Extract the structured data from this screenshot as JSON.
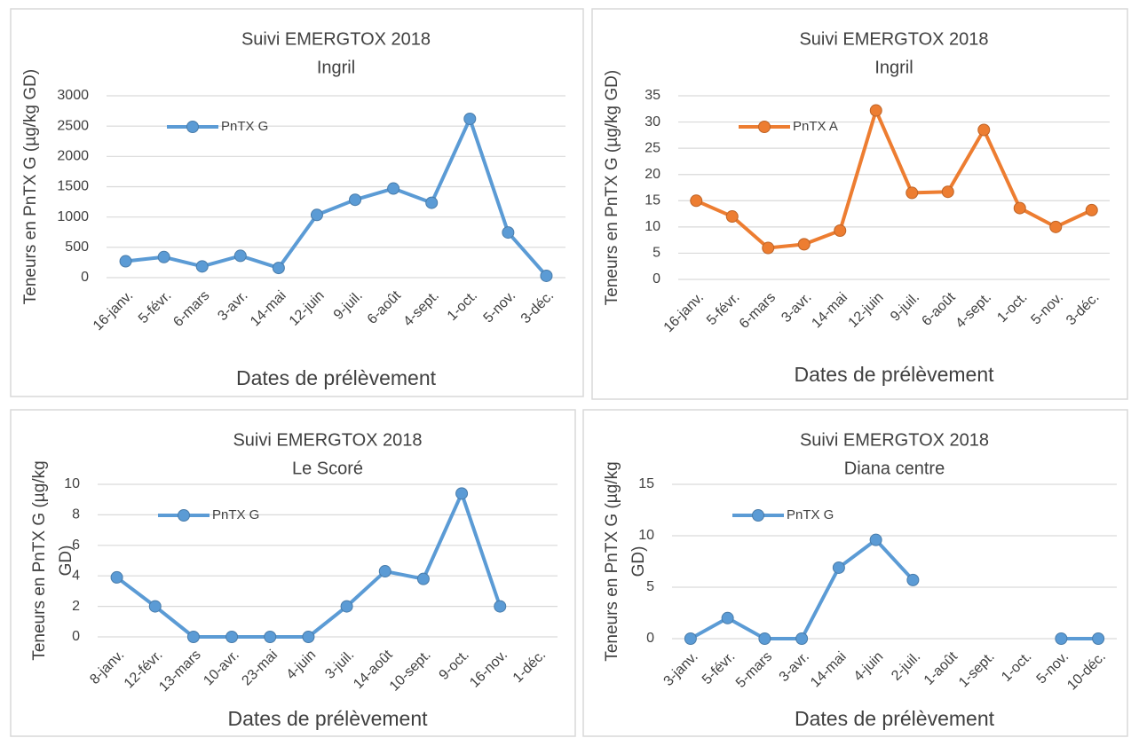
{
  "chart_data": [
    {
      "type": "line",
      "title": "Suivi EMERGTOX 2018",
      "subtitle": "Ingril",
      "x_label": "Dates de prélèvement",
      "y_label": [
        "Teneurs en PnTX G (µg/kg GD)"
      ],
      "categories": [
        "16-janv.",
        "5-févr.",
        "6-mars",
        "3-avr.",
        "14-mai",
        "12-juin",
        "9-juil.",
        "6-août",
        "4-sept.",
        "1-oct.",
        "5-nov.",
        "3-déc."
      ],
      "series": [
        {
          "name": "PnTX G",
          "color": "#5b9bd5",
          "values": [
            270,
            340,
            185,
            360,
            160,
            1035,
            1285,
            1470,
            1235,
            2620,
            745,
            30
          ]
        }
      ],
      "ylim": [
        0,
        3000
      ],
      "yticks": [
        0,
        500,
        1000,
        1500,
        2000,
        2500,
        3000
      ],
      "grid": true,
      "legend": "upper left"
    },
    {
      "type": "line",
      "title": "Suivi EMERGTOX 2018",
      "subtitle": "Ingril",
      "x_label": "Dates de prélèvement",
      "y_label": [
        "Teneurs en PnTX G (µg/kg GD)"
      ],
      "categories": [
        "16-janv.",
        "5-févr.",
        "6-mars",
        "3-avr.",
        "14-mai",
        "12-juin",
        "9-juil.",
        "6-août",
        "4-sept.",
        "1-oct.",
        "5-nov.",
        "3-déc."
      ],
      "series": [
        {
          "name": "PnTX A",
          "color": "#ed7d31",
          "values": [
            15,
            12,
            6,
            6.7,
            9.3,
            32.2,
            16.5,
            16.7,
            28.5,
            13.6,
            10,
            13.2
          ]
        }
      ],
      "ylim": [
        0,
        35
      ],
      "yticks": [
        0,
        5,
        10,
        15,
        20,
        25,
        30,
        35
      ],
      "grid": true,
      "legend": "upper left"
    },
    {
      "type": "line",
      "title": "Suivi EMERGTOX 2018",
      "subtitle": "Le Scoré",
      "x_label": "Dates de prélèvement",
      "y_label": [
        "Teneurs en PnTX G (µg/kg",
        "GD)"
      ],
      "categories": [
        "8-janv.",
        "12-févr.",
        "13-mars",
        "10-avr.",
        "23-mai",
        "4-juin",
        "3-juil.",
        "14-août",
        "10-sept.",
        "9-oct.",
        "16-nov.",
        "1-déc."
      ],
      "series": [
        {
          "name": "PnTX G",
          "color": "#5b9bd5",
          "values": [
            3.9,
            2,
            0,
            0,
            0,
            0,
            2,
            4.3,
            3.8,
            9.4,
            2,
            null
          ]
        }
      ],
      "ylim": [
        0,
        10
      ],
      "yticks": [
        0,
        2,
        4,
        6,
        8,
        10
      ],
      "grid": true,
      "legend": "upper left"
    },
    {
      "type": "line",
      "title": "Suivi EMERGTOX 2018",
      "subtitle": "Diana centre",
      "x_label": "Dates de prélèvement",
      "y_label": [
        "Teneurs en PnTX G (µg/kg",
        "GD)"
      ],
      "categories": [
        "3-janv.",
        "5-févr.",
        "5-mars",
        "3-avr.",
        "14-mai",
        "4-juin",
        "2-juil.",
        "1-août",
        "1-sept.",
        "1-oct.",
        "5-nov.",
        "10-déc."
      ],
      "series": [
        {
          "name": "PnTX G",
          "color": "#5b9bd5",
          "values": [
            0,
            2,
            0,
            0,
            6.9,
            9.6,
            5.7,
            null,
            null,
            null,
            0,
            0
          ]
        }
      ],
      "ylim": [
        0,
        15
      ],
      "yticks": [
        0,
        5,
        10,
        15
      ],
      "grid": true,
      "legend": "upper left"
    }
  ]
}
